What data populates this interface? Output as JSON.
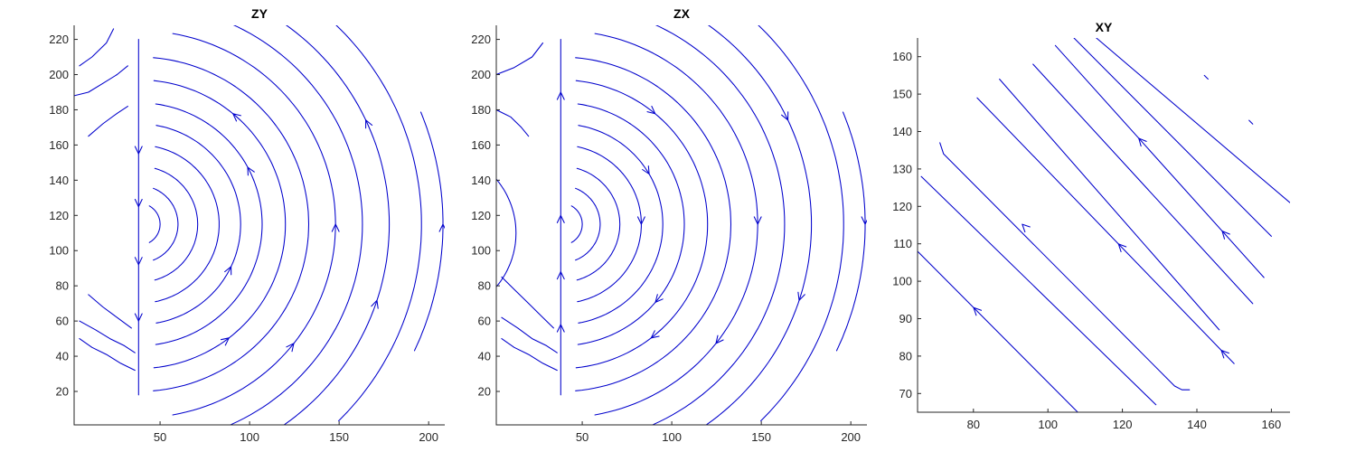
{
  "figure": {
    "background": "#ffffff",
    "line_color": "#0000cc",
    "axis_color": "#262626"
  },
  "chart_data": [
    {
      "type": "streamline",
      "title": "ZY",
      "xlabel": "",
      "ylabel": "",
      "xlim": [
        2,
        209
      ],
      "ylim": [
        1,
        228
      ],
      "xticks": [
        50,
        100,
        150,
        200
      ],
      "yticks": [
        20,
        40,
        60,
        80,
        100,
        120,
        140,
        160,
        180,
        200,
        220
      ],
      "grid": false,
      "series": [
        {
          "kind": "arc",
          "center": [
            38,
            115
          ],
          "radius": 12,
          "theta": [
            -60,
            60
          ]
        },
        {
          "kind": "arc",
          "center": [
            38,
            115
          ],
          "radius": 22,
          "theta": [
            -68,
            68
          ]
        },
        {
          "kind": "arc",
          "center": [
            38,
            115
          ],
          "radius": 33,
          "theta": [
            -74,
            74
          ]
        },
        {
          "kind": "arc",
          "center": [
            38,
            115
          ],
          "radius": 45,
          "theta": [
            -78,
            78
          ]
        },
        {
          "kind": "arc",
          "center": [
            38,
            115
          ],
          "radius": 57,
          "theta": [
            -80,
            80
          ],
          "arrows": [
            {
              "theta": -25,
              "dir": "up"
            }
          ]
        },
        {
          "kind": "arc",
          "center": [
            38,
            115
          ],
          "radius": 69,
          "theta": [
            -82,
            82
          ],
          "arrows": [
            {
              "theta": 28,
              "dir": "up"
            }
          ]
        },
        {
          "kind": "arc",
          "center": [
            38,
            115
          ],
          "radius": 82,
          "theta": [
            -84,
            84
          ],
          "arrows": [
            {
              "theta": -52,
              "dir": "left"
            },
            {
              "theta": 50,
              "dir": "left"
            }
          ]
        },
        {
          "kind": "arc",
          "center": [
            38,
            115
          ],
          "radius": 95,
          "theta": [
            -85,
            85
          ]
        },
        {
          "kind": "arc",
          "center": [
            38,
            115
          ],
          "radius": 110,
          "theta": [
            -80,
            80
          ],
          "arrows": [
            {
              "theta": 0,
              "dir": "up"
            },
            {
              "theta": -38,
              "dir": "up"
            }
          ]
        },
        {
          "kind": "arc",
          "center": [
            38,
            115
          ],
          "radius": 125,
          "theta": [
            -75,
            75
          ]
        },
        {
          "kind": "arc",
          "center": [
            38,
            115
          ],
          "radius": 140,
          "theta": [
            -68,
            68
          ],
          "arrows": [
            {
              "theta": 25,
              "dir": "up"
            },
            {
              "theta": -18,
              "dir": "up"
            }
          ]
        },
        {
          "kind": "arc",
          "center": [
            38,
            115
          ],
          "radius": 158,
          "theta": [
            -45,
            62
          ]
        },
        {
          "kind": "arc",
          "center": [
            38,
            115
          ],
          "radius": 170,
          "theta": [
            -25,
            22
          ],
          "arrows": [
            {
              "theta": 0,
              "dir": "up"
            }
          ]
        },
        {
          "kind": "vline",
          "x": 38,
          "y": [
            18,
            220
          ],
          "arrows": [
            {
              "y": 155,
              "dir": "down"
            },
            {
              "y": 125,
              "dir": "down"
            },
            {
              "y": 92,
              "dir": "down"
            },
            {
              "y": 60,
              "dir": "down"
            }
          ]
        },
        {
          "kind": "edge",
          "points": [
            [
              5,
              50
            ],
            [
              12,
              45
            ],
            [
              20,
              41
            ],
            [
              28,
              36
            ],
            [
              36,
              32
            ]
          ]
        },
        {
          "kind": "edge",
          "points": [
            [
              5,
              60
            ],
            [
              14,
              55
            ],
            [
              22,
              50
            ],
            [
              30,
              46
            ],
            [
              36,
              42
            ]
          ]
        },
        {
          "kind": "edge",
          "points": [
            [
              10,
              75
            ],
            [
              18,
              68
            ],
            [
              26,
              62
            ],
            [
              34,
              56
            ]
          ]
        },
        {
          "kind": "edge",
          "points": [
            [
              2,
              188
            ],
            [
              10,
              190
            ],
            [
              18,
              195
            ],
            [
              26,
              200
            ],
            [
              32,
              205
            ]
          ]
        },
        {
          "kind": "edge",
          "points": [
            [
              10,
              165
            ],
            [
              18,
              172
            ],
            [
              26,
              178
            ],
            [
              32,
              182
            ]
          ]
        },
        {
          "kind": "edge",
          "points": [
            [
              5,
              205
            ],
            [
              12,
              210
            ],
            [
              20,
              218
            ],
            [
              24,
              226
            ]
          ]
        }
      ]
    },
    {
      "type": "streamline",
      "title": "ZX",
      "xlabel": "",
      "ylabel": "",
      "xlim": [
        2,
        209
      ],
      "ylim": [
        1,
        228
      ],
      "xticks": [
        50,
        100,
        150,
        200
      ],
      "yticks": [
        20,
        40,
        60,
        80,
        100,
        120,
        140,
        160,
        180,
        200,
        220
      ],
      "grid": false,
      "series": [
        {
          "kind": "arc",
          "center": [
            38,
            115
          ],
          "radius": 12,
          "theta": [
            -60,
            60
          ]
        },
        {
          "kind": "arc",
          "center": [
            38,
            115
          ],
          "radius": 22,
          "theta": [
            -68,
            68
          ]
        },
        {
          "kind": "arc",
          "center": [
            38,
            115
          ],
          "radius": 33,
          "theta": [
            -74,
            74
          ]
        },
        {
          "kind": "arc",
          "center": [
            38,
            115
          ],
          "radius": 45,
          "theta": [
            -78,
            78
          ],
          "arrows": [
            {
              "theta": 0,
              "dir": "down"
            }
          ]
        },
        {
          "kind": "arc",
          "center": [
            38,
            115
          ],
          "radius": 57,
          "theta": [
            -80,
            80
          ],
          "arrows": [
            {
              "theta": 30,
              "dir": "down"
            }
          ]
        },
        {
          "kind": "arc",
          "center": [
            38,
            115
          ],
          "radius": 69,
          "theta": [
            -82,
            82
          ],
          "arrows": [
            {
              "theta": -40,
              "dir": "down"
            }
          ]
        },
        {
          "kind": "arc",
          "center": [
            38,
            115
          ],
          "radius": 82,
          "theta": [
            -84,
            84
          ],
          "arrows": [
            {
              "theta": -52,
              "dir": "right"
            },
            {
              "theta": 50,
              "dir": "right"
            }
          ]
        },
        {
          "kind": "arc",
          "center": [
            38,
            115
          ],
          "radius": 95,
          "theta": [
            -85,
            85
          ]
        },
        {
          "kind": "arc",
          "center": [
            38,
            115
          ],
          "radius": 110,
          "theta": [
            -80,
            80
          ],
          "arrows": [
            {
              "theta": 0,
              "dir": "down"
            },
            {
              "theta": -38,
              "dir": "down"
            }
          ]
        },
        {
          "kind": "arc",
          "center": [
            38,
            115
          ],
          "radius": 125,
          "theta": [
            -75,
            75
          ]
        },
        {
          "kind": "arc",
          "center": [
            38,
            115
          ],
          "radius": 140,
          "theta": [
            -68,
            68
          ],
          "arrows": [
            {
              "theta": 25,
              "dir": "down"
            },
            {
              "theta": -18,
              "dir": "down"
            }
          ]
        },
        {
          "kind": "arc",
          "center": [
            38,
            115
          ],
          "radius": 158,
          "theta": [
            -45,
            62
          ]
        },
        {
          "kind": "arc",
          "center": [
            38,
            115
          ],
          "radius": 170,
          "theta": [
            -25,
            22
          ],
          "arrows": [
            {
              "theta": 0,
              "dir": "down"
            }
          ]
        },
        {
          "kind": "vline",
          "x": 38,
          "y": [
            18,
            220
          ],
          "arrows": [
            {
              "y": 190,
              "dir": "up"
            },
            {
              "y": 120,
              "dir": "up"
            },
            {
              "y": 88,
              "dir": "up"
            },
            {
              "y": 58,
              "dir": "up"
            }
          ]
        },
        {
          "kind": "arc",
          "center": [
            -35,
            110
          ],
          "radius": 48,
          "theta": [
            -70,
            70
          ]
        },
        {
          "kind": "edge",
          "points": [
            [
              5,
              50
            ],
            [
              12,
              45
            ],
            [
              20,
              41
            ],
            [
              28,
              36
            ],
            [
              36,
              32
            ]
          ]
        },
        {
          "kind": "edge",
          "points": [
            [
              5,
              62
            ],
            [
              14,
              56
            ],
            [
              22,
              50
            ],
            [
              30,
              46
            ],
            [
              36,
              42
            ]
          ]
        },
        {
          "kind": "edge",
          "points": [
            [
              5,
              85
            ],
            [
              12,
              78
            ],
            [
              20,
              70
            ],
            [
              28,
              62
            ],
            [
              34,
              56
            ]
          ]
        },
        {
          "kind": "edge",
          "points": [
            [
              2,
              180
            ],
            [
              10,
              176
            ],
            [
              16,
              170
            ],
            [
              20,
              165
            ]
          ]
        },
        {
          "kind": "edge",
          "points": [
            [
              2,
              200
            ],
            [
              12,
              204
            ],
            [
              22,
              210
            ],
            [
              28,
              218
            ]
          ]
        }
      ]
    },
    {
      "type": "streamline",
      "title": "XY",
      "xlabel": "",
      "ylabel": "",
      "xlim": [
        65,
        165
      ],
      "ylim": [
        65,
        165
      ],
      "xticks": [
        80,
        100,
        120,
        140,
        160
      ],
      "yticks": [
        70,
        80,
        90,
        100,
        110,
        120,
        130,
        140,
        150,
        160
      ],
      "grid": false,
      "series": [
        {
          "kind": "line",
          "points": [
            [
              65,
              108
            ],
            [
              108,
              65
            ]
          ],
          "arrows": [
            {
              "t": 0.35,
              "dir": "up"
            }
          ]
        },
        {
          "kind": "line",
          "points": [
            [
              66,
              128
            ],
            [
              129,
              67
            ]
          ]
        },
        {
          "kind": "line",
          "points": [
            [
              71,
              137
            ],
            [
              72,
              134
            ],
            [
              74,
              132
            ],
            [
              134,
              72
            ],
            [
              136,
              71
            ],
            [
              138,
              71
            ]
          ],
          "arrows": [
            {
              "t": 0.33,
              "dir": "up"
            }
          ]
        },
        {
          "kind": "line",
          "points": [
            [
              81,
              149
            ],
            [
              150,
              78
            ]
          ],
          "arrows": [
            {
              "t": 0.55,
              "dir": "up"
            },
            {
              "t": 0.95,
              "dir": "up"
            }
          ]
        },
        {
          "kind": "line",
          "points": [
            [
              87,
              154
            ],
            [
              146,
              87
            ]
          ]
        },
        {
          "kind": "line",
          "points": [
            [
              96,
              158
            ],
            [
              155,
              94
            ]
          ]
        },
        {
          "kind": "line",
          "points": [
            [
              102,
              163
            ],
            [
              158,
              101
            ]
          ],
          "arrows": [
            {
              "t": 0.4,
              "dir": "up"
            },
            {
              "t": 0.8,
              "dir": "up"
            }
          ]
        },
        {
          "kind": "line",
          "points": [
            [
              107,
              165
            ],
            [
              160,
              112
            ]
          ]
        },
        {
          "kind": "line",
          "points": [
            [
              113,
              165
            ],
            [
              165,
              121
            ]
          ]
        },
        {
          "kind": "line",
          "points": [
            [
              142,
              155
            ],
            [
              143,
              154
            ]
          ]
        },
        {
          "kind": "line",
          "points": [
            [
              154,
              143
            ],
            [
              155,
              142
            ]
          ]
        }
      ]
    }
  ]
}
